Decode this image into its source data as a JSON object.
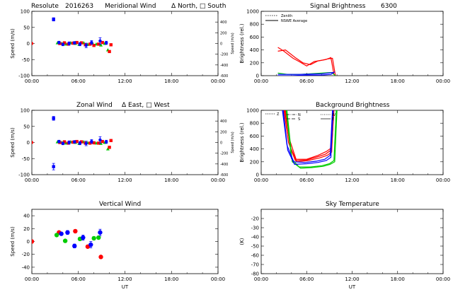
{
  "chart_data": [
    {
      "id": "meridional",
      "type": "scatter",
      "title_parts": [
        "Resolute",
        "2016263",
        "Meridional Wind",
        "Δ North, □ South"
      ],
      "ylabel": "Speed (m/s)",
      "ylabel_right": "Speed (m/s)",
      "xlim": [
        0,
        24
      ],
      "ylim": [
        -100,
        100
      ],
      "yticks": [
        -100,
        -50,
        0,
        50,
        100
      ],
      "ylim_right": [
        -600,
        600
      ],
      "yticks_right": [
        -600,
        -400,
        -200,
        0,
        200,
        400
      ],
      "series": [
        {
          "marker": "square",
          "color": "#0000ff",
          "x": [
            2.8
          ],
          "y": [
            75
          ],
          "err": [
            5
          ]
        },
        {
          "marker": "dot",
          "color": "#ff0000",
          "x": [
            0.0
          ],
          "y": [
            0
          ]
        },
        {
          "marker": "triangle",
          "color": "#00cc00",
          "x": [
            3.3,
            3.9,
            4.4,
            5.0,
            5.6,
            6.1,
            6.7,
            7.2,
            7.8,
            8.3,
            8.9,
            9.4,
            9.8
          ],
          "y": [
            2,
            0,
            -2,
            2,
            0,
            -3,
            2,
            -3,
            2,
            -2,
            -5,
            0,
            -20
          ]
        },
        {
          "marker": "square",
          "color": "#ff0000",
          "x": [
            3.6,
            4.2,
            4.7,
            5.3,
            5.8,
            6.4,
            6.9,
            7.5,
            8.0,
            8.6,
            9.1,
            10.0,
            10.2
          ],
          "y": [
            0,
            2,
            -2,
            1,
            3,
            2,
            -4,
            -2,
            -6,
            -2,
            3,
            -25,
            -4
          ]
        },
        {
          "marker": "dot",
          "color": "#0000ff",
          "x": [
            3.5,
            4.0,
            4.8,
            5.5,
            6.2,
            7.0,
            7.7,
            8.8,
            9.6
          ],
          "y": [
            3,
            -3,
            0,
            2,
            -2,
            -6,
            3,
            8,
            2
          ],
          "err": [
            4,
            4,
            5,
            4,
            5,
            7,
            6,
            10,
            5
          ]
        }
      ]
    },
    {
      "id": "signal",
      "type": "line",
      "title_parts": [
        "Signal Brightness",
        "6300"
      ],
      "ylabel": "Brightness (rel.)",
      "xlim": [
        0,
        24
      ],
      "ylim": [
        0,
        1000
      ],
      "yticks": [
        0,
        200,
        400,
        600,
        800,
        1000
      ],
      "legend": [
        "Zenith",
        "NSWE Average"
      ],
      "series": [
        {
          "color": "#ff0000",
          "x": [
            2.2,
            3.0,
            4.2,
            5.0,
            6.0,
            7.0,
            8.0,
            8.8,
            9.4,
            9.8
          ],
          "y": [
            440,
            380,
            270,
            220,
            150,
            220,
            240,
            260,
            270,
            0
          ]
        },
        {
          "color": "#ff0000",
          "x": [
            2.2,
            3.2,
            4.5,
            5.5,
            6.5,
            7.5,
            8.5,
            9.2,
            9.6
          ],
          "y": [
            380,
            400,
            280,
            200,
            170,
            230,
            250,
            280,
            20
          ]
        },
        {
          "color": "#00cc00",
          "x": [
            2.2,
            3.5,
            5,
            6.5,
            8,
            9.3,
            9.8
          ],
          "y": [
            40,
            20,
            20,
            30,
            40,
            50,
            0
          ]
        },
        {
          "color": "#0000ff",
          "x": [
            2.2,
            4,
            6,
            8,
            9.2,
            9.7
          ],
          "y": [
            0,
            0,
            10,
            10,
            20,
            60
          ]
        },
        {
          "color": "#0000ff",
          "x": [
            2.2,
            5,
            8,
            9.5
          ],
          "y": [
            20,
            20,
            30,
            50
          ]
        }
      ]
    },
    {
      "id": "zonal",
      "type": "scatter",
      "title_parts": [
        "Zonal Wind",
        "Δ East, □ West"
      ],
      "ylabel": "Speed (m/s)",
      "ylabel_right": "Speed (m/s)",
      "xlim": [
        0,
        24
      ],
      "ylim": [
        -100,
        100
      ],
      "yticks": [
        -100,
        -50,
        0,
        50,
        100
      ],
      "ylim_right": [
        -600,
        600
      ],
      "yticks_right": [
        -600,
        -400,
        -200,
        0,
        200,
        400
      ],
      "series": [
        {
          "marker": "square",
          "color": "#0000ff",
          "x": [
            2.8,
            2.8
          ],
          "y": [
            75,
            -75
          ],
          "err": [
            6,
            10
          ]
        },
        {
          "marker": "dot",
          "color": "#ff0000",
          "x": [
            0.0
          ],
          "y": [
            0
          ]
        },
        {
          "marker": "triangle",
          "color": "#00cc00",
          "x": [
            3.3,
            3.9,
            4.4,
            5.0,
            5.6,
            6.1,
            6.7,
            7.2,
            7.8,
            8.3,
            8.9,
            9.4,
            9.8
          ],
          "y": [
            2,
            0,
            -2,
            2,
            0,
            -3,
            2,
            -1,
            2,
            -2,
            -3,
            0,
            -20
          ]
        },
        {
          "marker": "square",
          "color": "#ff0000",
          "x": [
            3.6,
            4.2,
            4.7,
            5.3,
            5.8,
            6.4,
            6.9,
            7.5,
            8.0,
            8.6,
            9.1,
            10.0,
            10.2
          ],
          "y": [
            0,
            2,
            -2,
            1,
            3,
            2,
            -2,
            -2,
            -1,
            -2,
            3,
            -15,
            6
          ]
        },
        {
          "marker": "dot",
          "color": "#0000ff",
          "x": [
            3.5,
            4.0,
            4.8,
            5.5,
            6.2,
            7.0,
            7.7,
            8.8,
            9.6
          ],
          "y": [
            3,
            -3,
            0,
            2,
            -2,
            -3,
            3,
            8,
            2
          ],
          "err": [
            4,
            4,
            5,
            4,
            5,
            7,
            6,
            10,
            5
          ]
        }
      ]
    },
    {
      "id": "background",
      "type": "line",
      "title_parts": [
        "Background Brightness"
      ],
      "ylabel": "Brightness (rel.)",
      "xlim": [
        0,
        24
      ],
      "ylim": [
        0,
        1000
      ],
      "yticks": [
        0,
        200,
        400,
        600,
        800,
        1000
      ],
      "legend": [
        "Z",
        "N",
        "S",
        "W",
        "E"
      ],
      "series": [
        {
          "color": "#ff0000",
          "x": [
            3.0,
            3.6,
            4.5,
            6.0,
            7.5,
            8.5,
            9.2,
            9.5
          ],
          "y": [
            1000,
            500,
            220,
            230,
            280,
            320,
            380,
            1000
          ]
        },
        {
          "color": "#ff0000",
          "x": [
            3.1,
            3.7,
            4.6,
            6.0,
            7.5,
            8.6,
            9.3,
            9.6
          ],
          "y": [
            1000,
            560,
            240,
            240,
            300,
            360,
            420,
            1000
          ]
        },
        {
          "color": "#ff0000",
          "x": [
            3.2,
            3.8,
            4.7,
            6.2,
            7.7,
            8.7,
            9.3,
            9.55
          ],
          "y": [
            1000,
            440,
            200,
            220,
            260,
            300,
            350,
            1000
          ]
        },
        {
          "color": "#00cc00",
          "x": [
            3.3,
            4.0,
            5.0,
            6.5,
            8.0,
            9.0,
            9.6,
            9.9
          ],
          "y": [
            1000,
            250,
            120,
            120,
            140,
            170,
            220,
            1000
          ]
        },
        {
          "color": "#00cc00",
          "x": [
            3.4,
            4.1,
            5.2,
            6.7,
            8.2,
            9.1,
            9.7,
            10.0
          ],
          "y": [
            1000,
            200,
            100,
            110,
            130,
            160,
            200,
            1000
          ]
        },
        {
          "color": "#0000ff",
          "x": [
            2.8,
            3.4,
            4.3,
            5.8,
            7.3,
            8.4,
            9.1,
            9.4
          ],
          "y": [
            1000,
            460,
            200,
            190,
            210,
            240,
            300,
            1000
          ]
        },
        {
          "color": "#0000ff",
          "x": [
            2.9,
            3.5,
            4.4,
            6.0,
            7.5,
            8.6,
            9.2,
            9.5
          ],
          "y": [
            1000,
            380,
            160,
            170,
            190,
            220,
            270,
            1000
          ]
        }
      ]
    },
    {
      "id": "vertical",
      "type": "scatter",
      "title_parts": [
        "Vertical Wind"
      ],
      "ylabel": "Speed (m/s)",
      "xlabel": "UT",
      "xlim": [
        0,
        24
      ],
      "ylim": [
        -50,
        50
      ],
      "yticks": [
        -40,
        -20,
        0,
        20,
        40
      ],
      "series": [
        {
          "marker": "dot",
          "color": "#ff0000",
          "x": [
            0.0,
            3.5,
            5.6,
            7.2,
            8.9
          ],
          "y": [
            0,
            14,
            16,
            -8,
            -24
          ]
        },
        {
          "marker": "dot",
          "color": "#00cc00",
          "x": [
            3.2,
            4.3,
            6.2,
            8.0,
            8.6
          ],
          "y": [
            10,
            1,
            4,
            5,
            6
          ]
        },
        {
          "marker": "dot",
          "color": "#0000ff",
          "x": [
            3.8,
            4.6,
            5.5,
            6.6,
            7.6,
            8.8
          ],
          "y": [
            12,
            14,
            -7,
            6,
            -5,
            14
          ],
          "err": [
            2,
            3,
            3,
            4,
            5,
            5
          ]
        }
      ]
    },
    {
      "id": "sky",
      "type": "scatter",
      "title_parts": [
        "Sky Temperature"
      ],
      "ylabel": "(K)",
      "xlabel": "UT",
      "xlim": [
        0,
        24
      ],
      "ylim": [
        -80,
        -10
      ],
      "yticks": [
        -80,
        -70,
        -60,
        -50,
        -40,
        -30,
        -20
      ],
      "series": []
    }
  ],
  "xtick_labels": [
    "00:00",
    "06:00",
    "12:00",
    "18:00",
    "00:00"
  ],
  "xtick_values": [
    0,
    6,
    12,
    18,
    24
  ]
}
